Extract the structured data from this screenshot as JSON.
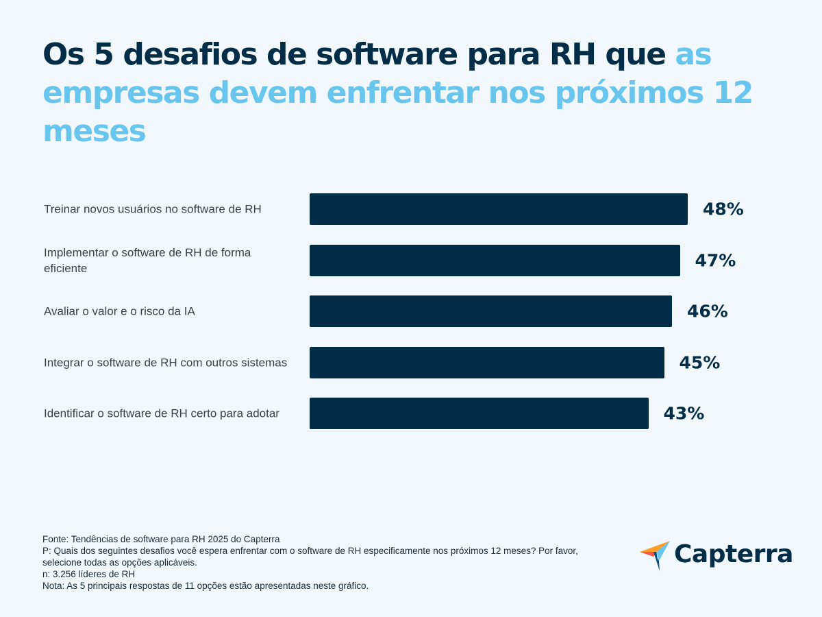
{
  "title": {
    "dark": "Os 5 desafios de software para RH que ",
    "highlight": "as empresas devem enfrentar nos próximos 12 meses"
  },
  "colors": {
    "bar": "#012d46",
    "title_dark": "#012d46",
    "title_highlight": "#68c5ee",
    "background": "#f2f7fc"
  },
  "chart_data": {
    "type": "bar",
    "orientation": "horizontal",
    "categories": [
      "Treinar novos usuários no software de RH",
      "Implementar o software de RH de forma eficiente",
      "Avaliar o valor e o risco da IA",
      "Integrar o software de RH com outros sistemas",
      "Identificar o software de RH certo para adotar"
    ],
    "values": [
      48,
      47,
      46,
      45,
      43
    ],
    "data_labels": [
      "48%",
      "47%",
      "46%",
      "45%",
      "43%"
    ],
    "grid": false
  },
  "notes": [
    "Fonte: Tendências de software para RH 2025 do Capterra",
    "P: Quais dos seguintes desafios você espera enfrentar com o software de RH especificamente nos próximos 12 meses? Por favor, selecione todas as opções aplicáveis.",
    "n: 3.256 líderes de RH",
    "Nota: As 5 principais respostas de 11 opções estão apresentadas neste gráfico."
  ],
  "logo": {
    "text": "Capterra"
  }
}
